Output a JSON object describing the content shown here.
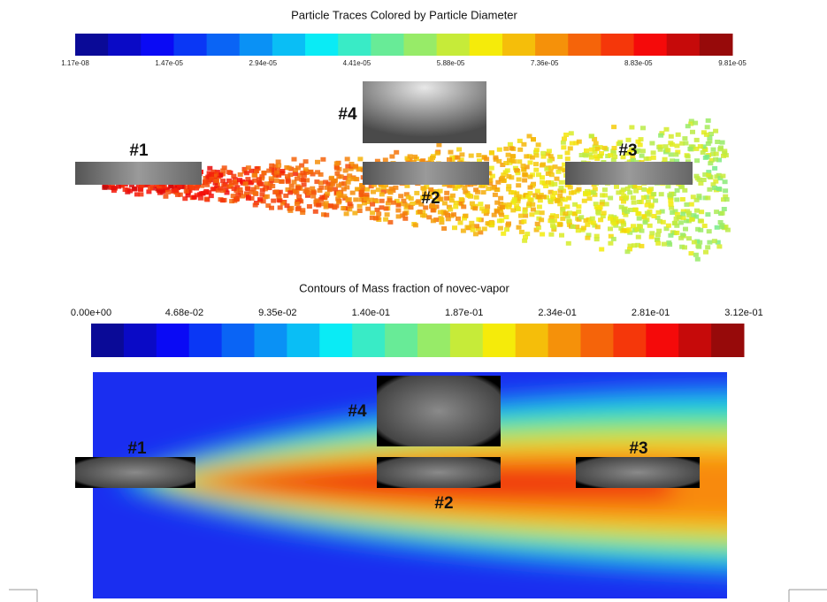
{
  "top": {
    "title": "Particle Traces Colored by Particle Diameter",
    "colorbar_labels": [
      "1.17e-08",
      "1.47e-05",
      "2.94e-05",
      "4.41e-05",
      "5.88e-05",
      "7.36e-05",
      "8.83e-05",
      "9.81e-05"
    ],
    "windows": [
      "#1",
      "#2",
      "#3",
      "#4"
    ]
  },
  "bottom": {
    "title": "Contours of Mass fraction of novec-vapor",
    "colorbar_labels": [
      "0.00e+00",
      "4.68e-02",
      "9.35e-02",
      "1.40e-01",
      "1.87e-01",
      "2.34e-01",
      "2.81e-01",
      "3.12e-01"
    ],
    "windows": [
      "#1",
      "#2",
      "#3",
      "#4"
    ]
  }
}
